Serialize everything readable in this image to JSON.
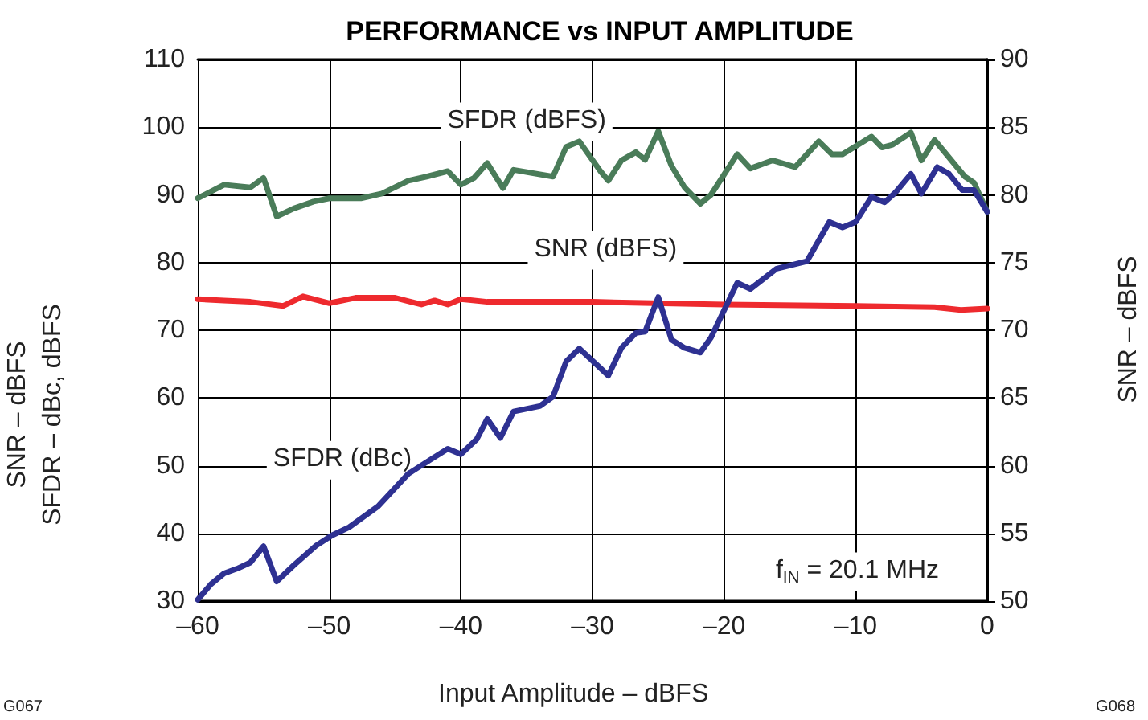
{
  "chart_data": {
    "type": "line",
    "title": "PERFORMANCE vs INPUT AMPLITUDE",
    "xlabel": "Input Amplitude – dBFS",
    "ylabel": "SNR – dBFS\nSFDR – dBc, dBFS",
    "y2label": "SNR – dBFS",
    "xlim": [
      -60,
      0
    ],
    "xticks": [
      {
        "value": -60,
        "label": "–60"
      },
      {
        "value": -50,
        "label": "–50"
      },
      {
        "value": -40,
        "label": "–40"
      },
      {
        "value": -30,
        "label": "–30"
      },
      {
        "value": -20,
        "label": "–20"
      },
      {
        "value": -10,
        "label": "–10"
      },
      0
    ],
    "ylim": [
      30,
      110
    ],
    "yticks": [
      30,
      40,
      50,
      60,
      70,
      80,
      90,
      100,
      110
    ],
    "y2lim": [
      50,
      90
    ],
    "y2ticks": [
      50,
      55,
      60,
      65,
      70,
      75,
      80,
      85,
      90
    ],
    "grid": true,
    "legend": false,
    "marker": "none",
    "line_style": "solid",
    "series": [
      {
        "name": "SFDR (dBFS)",
        "color": "#4a7c59",
        "x": [
          -60,
          -58,
          -56,
          -55,
          -54,
          -52.7,
          -51.2,
          -50,
          -47.6,
          -46,
          -44,
          -42.6,
          -41,
          -40,
          -39,
          -38,
          -36.8,
          -36,
          -33,
          -32,
          -31,
          -29.4,
          -28.8,
          -27.8,
          -26.7,
          -26,
          -25,
          -24,
          -23,
          -21.8,
          -21,
          -19,
          -18,
          -16.3,
          -14.6,
          -12.8,
          -11.8,
          -11,
          -8.8,
          -8,
          -7.2,
          -5.8,
          -5,
          -4,
          -1.7,
          -1,
          0
        ],
        "values": [
          89.5,
          91.5,
          91.1,
          92.5,
          86.8,
          88,
          89,
          89.5,
          89.5,
          90.2,
          92.1,
          92.7,
          93.5,
          91.5,
          92.5,
          94.7,
          91,
          93.7,
          92.7,
          97.1,
          97.9,
          93.5,
          92.1,
          95.1,
          96.3,
          95.2,
          99.4,
          94.3,
          91.1,
          88.7,
          90,
          96,
          93.9,
          95.1,
          94.1,
          97.9,
          96,
          96,
          98.6,
          97,
          97.4,
          99.2,
          95.1,
          98.1,
          92.7,
          91.8,
          87.5
        ]
      },
      {
        "name": "SNR (dBFS)",
        "color": "#ee2a2e",
        "axis": "y2",
        "x": [
          -60,
          -58,
          -56,
          -53.5,
          -52,
          -50,
          -48,
          -45,
          -43,
          -42,
          -41,
          -40,
          -38,
          -35,
          -30,
          -20,
          -10,
          -4,
          -2,
          0
        ],
        "values": [
          72.3,
          72.2,
          72.1,
          71.8,
          72.5,
          72,
          72.4,
          72.4,
          71.9,
          72.2,
          71.9,
          72.3,
          72.1,
          72.1,
          72.1,
          71.9,
          71.8,
          71.7,
          71.5,
          71.6
        ]
      },
      {
        "name": "SFDR (dBc)",
        "color": "#2e3192",
        "x": [
          -60,
          -59,
          -58,
          -57,
          -56,
          -55,
          -54,
          -52.7,
          -51,
          -49.8,
          -48.5,
          -46.3,
          -44,
          -42.3,
          -41,
          -40,
          -38.8,
          -38,
          -37,
          -36,
          -34,
          -33,
          -32,
          -31,
          -29.4,
          -28.8,
          -27.8,
          -26.7,
          -26,
          -25,
          -24,
          -23,
          -21.8,
          -21,
          -19,
          -18,
          -16,
          -13.7,
          -12,
          -11,
          -10,
          -8.8,
          -7.8,
          -7,
          -5.8,
          -5,
          -3.8,
          -2.9,
          -1.9,
          -1,
          0
        ],
        "values": [
          30.2,
          32.5,
          34.1,
          34.8,
          35.7,
          38.1,
          32.9,
          35.3,
          38.2,
          39.7,
          40.9,
          44,
          48.8,
          50.9,
          52.5,
          51.7,
          53.9,
          56.9,
          54.1,
          58,
          58.8,
          60.2,
          65.4,
          67.3,
          64.4,
          63.3,
          67.4,
          69.6,
          69.8,
          74.9,
          68.6,
          67.4,
          66.7,
          68.9,
          77,
          76.1,
          79.1,
          80.2,
          86,
          85.2,
          86,
          89.7,
          88.9,
          90.3,
          93.1,
          90.2,
          94.1,
          93.1,
          90.7,
          90.7,
          87.5
        ]
      }
    ],
    "annotations": [
      "f$_{IN}$ = 20.1 MHz",
      "G067",
      "G068"
    ]
  }
}
